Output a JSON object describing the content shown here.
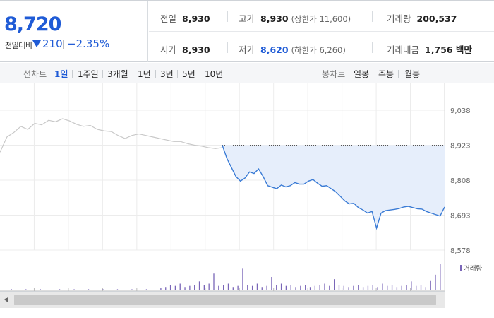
{
  "quote": {
    "price": "8,720",
    "change_label": "전일대비",
    "change_value": "210",
    "change_pct": "−2.35%"
  },
  "stats": {
    "prev_close_label": "전일",
    "prev_close": "8,930",
    "high_label": "고가",
    "high": "8,930",
    "upper_limit": "(상한가 11,600)",
    "volume_label": "거래량",
    "volume": "200,537",
    "open_label": "시가",
    "open": "8,930",
    "low_label": "저가",
    "low": "8,620",
    "lower_limit": "(하한가 6,260)",
    "amount_label": "거래대금",
    "amount": "1,756 백만"
  },
  "tabs": {
    "line_chart_label": "선차트",
    "line_chart": [
      "1일",
      "1주일",
      "3개월",
      "1년",
      "3년",
      "5년",
      "10년"
    ],
    "line_active": "1일",
    "candle_chart_label": "봉차트",
    "candle_chart": [
      "일봉",
      "주봉",
      "월봉"
    ]
  },
  "colors": {
    "accent": "#1f5bd6",
    "series_today": "#3a7bd5",
    "series_prev": "#c8c8c8",
    "fill_today": "#e6eefb",
    "volume_bar": "#7a66b8"
  },
  "chart_data": {
    "type": "line",
    "title": "",
    "xlabel": "",
    "ylabel": "",
    "yticks": [
      "9,038",
      "8,923",
      "8,808",
      "8,693",
      "8,578"
    ],
    "ylim": [
      8578,
      9038
    ],
    "reference_line": 8923,
    "grid": true,
    "series": [
      {
        "values": [
          8900,
          8950,
          8965,
          8985,
          8975,
          8995,
          8990,
          9005,
          9000,
          9010,
          9003,
          8992,
          8985,
          8988,
          8975,
          8970,
          8968,
          8955,
          8945,
          8955,
          8960,
          8955,
          8950,
          8945,
          8940,
          8935,
          8935,
          8928,
          8923,
          8920,
          8915,
          8912,
          8915
        ]
      },
      {
        "values": [
          8923,
          8880,
          8850,
          8820,
          8805,
          8815,
          8835,
          8830,
          8845,
          8820,
          8790,
          8785,
          8780,
          8792,
          8786,
          8790,
          8800,
          8795,
          8795,
          8805,
          8810,
          8798,
          8788,
          8790,
          8780,
          8770,
          8755,
          8740,
          8730,
          8732,
          8718,
          8710,
          8700,
          8705,
          8650,
          8700,
          8708,
          8710,
          8712,
          8715,
          8720,
          8722,
          8718,
          8714,
          8713,
          8705,
          8700,
          8695,
          8690,
          8720
        ]
      }
    ],
    "volume_legend": "거래량",
    "volume": [
      0,
      0,
      1,
      0,
      0,
      1,
      0,
      0,
      1,
      0,
      0,
      0,
      1,
      0,
      0,
      1,
      0,
      0,
      1,
      0,
      0,
      1,
      0,
      0,
      1,
      0,
      0,
      1,
      0,
      0,
      1,
      0,
      0,
      2,
      3,
      5,
      4,
      6,
      3,
      4,
      5,
      8,
      5,
      6,
      15,
      4,
      5,
      6,
      3,
      4,
      20,
      5,
      4,
      6,
      3,
      4,
      12,
      5,
      6,
      4,
      5,
      3,
      4,
      5,
      3,
      4,
      5,
      6,
      4,
      10,
      5,
      4,
      3,
      4,
      5,
      3,
      4,
      5,
      3,
      6,
      4,
      5,
      3,
      4,
      5,
      8,
      4,
      5,
      3,
      9,
      14,
      24
    ]
  }
}
